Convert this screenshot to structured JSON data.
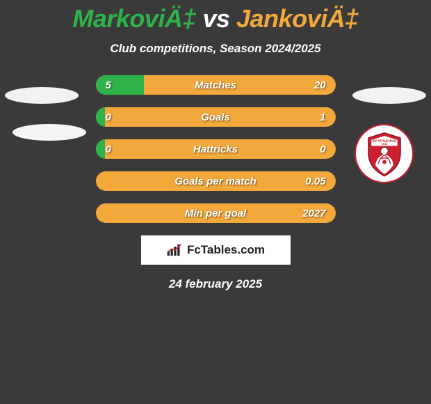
{
  "title": {
    "player1": "MarkoviÄ‡",
    "vs": " vs ",
    "player2": "JankoviÄ‡",
    "color1": "#2eb34a",
    "color_vs": "#ffffff",
    "color2": "#f2a83a",
    "fontsize": 36
  },
  "subtitle": "Club competitions, Season 2024/2025",
  "background_color": "#3a3a3a",
  "stats": {
    "bar_bg": "#f2a83a",
    "fill_color": "#2eb34a",
    "rows": [
      {
        "label": "Matches",
        "left": "5",
        "right": "20",
        "fill_pct": 20
      },
      {
        "label": "Goals",
        "left": "0",
        "right": "1",
        "fill_pct": 4
      },
      {
        "label": "Hattricks",
        "left": "0",
        "right": "0",
        "fill_pct": 4
      },
      {
        "label": "Goals per match",
        "left": "",
        "right": "0.05",
        "fill_pct": 0
      },
      {
        "label": "Min per goal",
        "left": "",
        "right": "2027",
        "fill_pct": 0
      }
    ]
  },
  "watermark": "FcTables.com",
  "date": "24 february 2025",
  "badge": {
    "bg": "#ffffff",
    "primary": "#cc2030",
    "text": "ФК ВОЖДОВАЦ",
    "year": "1912"
  }
}
